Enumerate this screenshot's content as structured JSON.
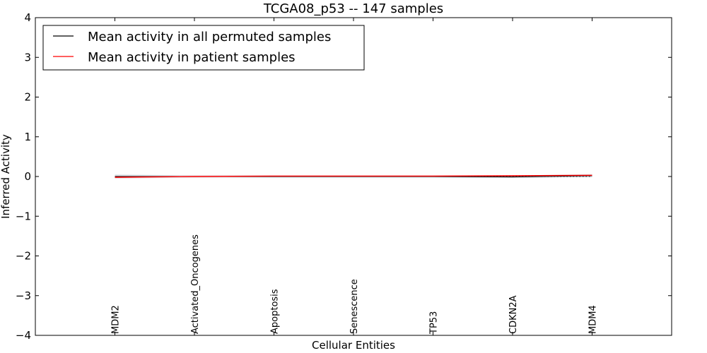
{
  "chart_data": {
    "type": "line",
    "title": "TCGA08_p53 -- 147 samples",
    "xlabel": "Cellular Entities",
    "ylabel": "Inferred Activity",
    "ylim": [
      -4,
      4
    ],
    "yticks": [
      -4,
      -3,
      -2,
      -1,
      0,
      1,
      2,
      3,
      4
    ],
    "ytick_labels": [
      "−4",
      "−3",
      "−2",
      "−1",
      "0",
      "1",
      "2",
      "3",
      "4"
    ],
    "xlim": [
      -1,
      7
    ],
    "categories": [
      "MDM2",
      "Activated_Oncogenes",
      "Apoptosis",
      "Senescence",
      "TP53",
      "CDKN2A",
      "MDM4"
    ],
    "grid": false,
    "legend_position": "top-left",
    "series": [
      {
        "name": "Mean activity in all permuted samples",
        "color": "#000000",
        "values": [
          0.0,
          0.0,
          0.0,
          0.0,
          0.0,
          -0.01,
          0.02
        ],
        "band": [
          0.05,
          0.03,
          0.03,
          0.03,
          0.03,
          0.03,
          0.04
        ]
      },
      {
        "name": "Mean activity in patient samples",
        "color": "#ff0000",
        "values": [
          -0.02,
          0.0,
          0.01,
          0.01,
          0.01,
          0.02,
          0.03
        ]
      }
    ]
  }
}
